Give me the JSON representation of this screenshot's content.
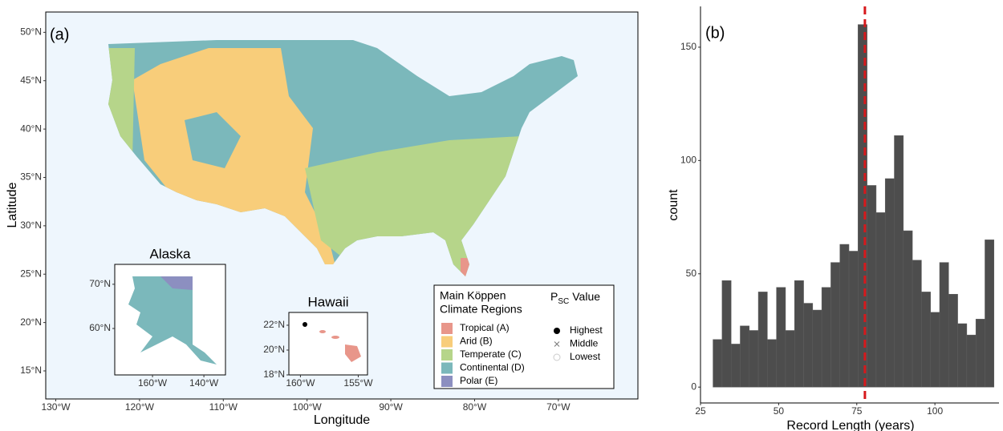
{
  "chart_data": [
    {
      "type": "map",
      "label": "(a)",
      "xlabel": "Longitude",
      "ylabel": "Latitude",
      "xlim": [
        -131.2,
        -60.5
      ],
      "ylim": [
        12.1,
        52.1
      ],
      "xticks": [
        {
          "value": -130,
          "label": "130°W"
        },
        {
          "value": -120,
          "label": "120°W"
        },
        {
          "value": -110,
          "label": "110°W"
        },
        {
          "value": -100,
          "label": "100°W"
        },
        {
          "value": -90,
          "label": "90°W"
        },
        {
          "value": -80,
          "label": "80°W"
        },
        {
          "value": -70,
          "label": "70°W"
        }
      ],
      "yticks": [
        {
          "value": 15,
          "label": "15°N"
        },
        {
          "value": 20,
          "label": "20°N"
        },
        {
          "value": 25,
          "label": "25°N"
        },
        {
          "value": 30,
          "label": "30°N"
        },
        {
          "value": 35,
          "label": "35°N"
        },
        {
          "value": 40,
          "label": "40°N"
        },
        {
          "value": 45,
          "label": "45°N"
        },
        {
          "value": 50,
          "label": "50°N"
        }
      ],
      "insets": [
        {
          "title": "Alaska",
          "xlim": [
            -174.7,
            -131.6
          ],
          "ylim": [
            49.5,
            74.5
          ],
          "xticks": [
            {
              "value": -160,
              "label": "160°W"
            },
            {
              "value": -140,
              "label": "140°W"
            }
          ],
          "yticks": [
            {
              "value": 60,
              "label": "60°N"
            },
            {
              "value": 70,
              "label": "70°N"
            }
          ]
        },
        {
          "title": "Hawaii",
          "xlim": [
            -161,
            -154.2
          ],
          "ylim": [
            18,
            23.03
          ],
          "xticks": [
            {
              "value": -160,
              "label": "160°W"
            },
            {
              "value": -155,
              "label": "155°W"
            }
          ],
          "yticks": [
            {
              "value": 18,
              "label": "18°N"
            },
            {
              "value": 20,
              "label": "20°N"
            },
            {
              "value": 22,
              "label": "22°N"
            }
          ]
        }
      ],
      "legend": {
        "title": [
          "Main Köppen",
          "Climate Regions"
        ],
        "regions": [
          {
            "name": "Tropical (A)",
            "color": "#e8968a"
          },
          {
            "name": "Arid (B)",
            "color": "#f8cd7a"
          },
          {
            "name": "Temperate (C)",
            "color": "#b6d58a"
          },
          {
            "name": "Continental (D)",
            "color": "#7bb8bb"
          },
          {
            "name": "Polar (E)",
            "color": "#8c8fc0"
          }
        ],
        "marker_title": {
          "base": "P",
          "sub": "SC",
          "rest": "Value"
        },
        "markers": [
          {
            "name": "Highest",
            "marker": "filled-circle"
          },
          {
            "name": "Middle",
            "marker": "cross"
          },
          {
            "name": "Lowest",
            "marker": "open-circle"
          }
        ]
      }
    },
    {
      "type": "histogram",
      "label": "(b)",
      "xlabel": "Record Length (years)",
      "ylabel": "count",
      "bins": [
        29.0,
        31.9,
        34.8,
        37.7,
        40.6,
        43.5,
        46.4,
        49.3,
        52.2,
        55.1,
        58.0,
        60.9,
        63.8,
        66.7,
        69.6,
        72.5,
        75.4,
        78.3,
        81.2,
        84.1,
        87.0,
        89.9,
        92.8,
        95.7,
        98.6,
        101.5,
        104.4,
        107.3,
        110.2,
        113.1,
        116.0,
        118.9
      ],
      "values": [
        21,
        47,
        19,
        27,
        25,
        42,
        21,
        44,
        25,
        47,
        37,
        34,
        44,
        55,
        63,
        60,
        160,
        89,
        77,
        92,
        111,
        69,
        56,
        42,
        33,
        55,
        41,
        28,
        23,
        30,
        65
      ],
      "color": "#4d4d4d",
      "xlim": [
        25,
        120.5
      ],
      "ylim": [
        -7,
        168
      ],
      "xticks": [
        25,
        50,
        75,
        100
      ],
      "yticks": [
        0,
        50,
        100,
        150
      ],
      "vline": {
        "value": 77.6,
        "color": "#d7191c"
      }
    }
  ]
}
